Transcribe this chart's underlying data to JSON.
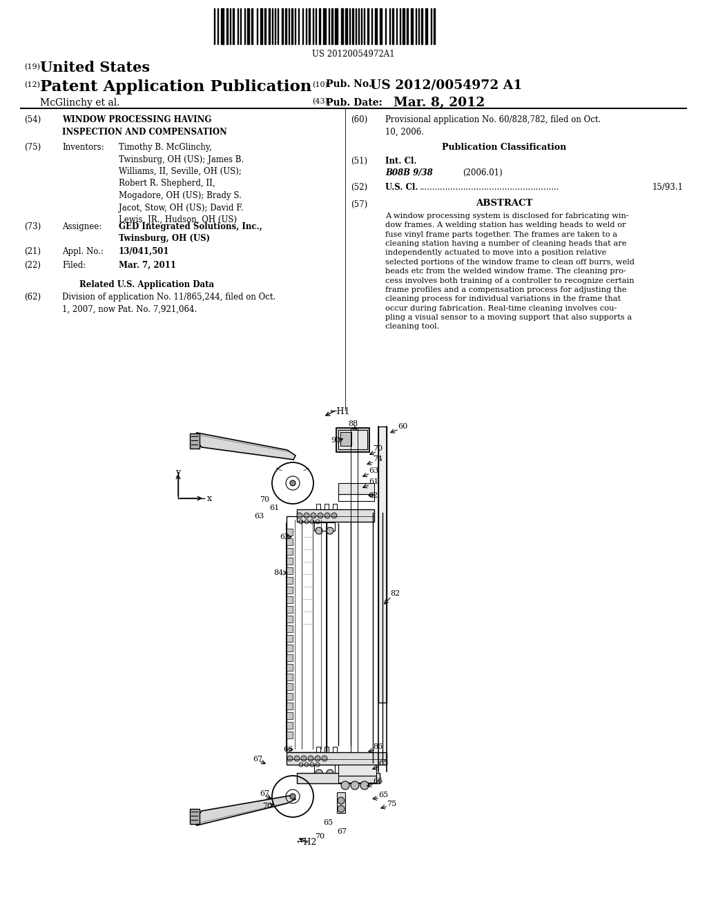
{
  "bg_color": "#ffffff",
  "barcode_text": "US 20120054972A1",
  "header_19": "(19)",
  "header_19_text": "United States",
  "header_12": "(12)",
  "header_12_text": "Patent Application Publication",
  "header_10": "(10)",
  "header_10_label": "Pub. No.:",
  "header_10_value": "US 2012/0054972 A1",
  "header_43": "(43)",
  "header_43_label": "Pub. Date:",
  "header_43_value": "Mar. 8, 2012",
  "mcglinchy": "McGlinchy et al.",
  "field_54_label": "(54)",
  "field_54_title": "WINDOW PROCESSING HAVING\nINSPECTION AND COMPENSATION",
  "field_75_label": "(75)",
  "field_75_key": "Inventors:",
  "field_75_value": "Timothy B. McGlinchy,\nTwinsburg, OH (US); James B.\nWilliams, II, Seville, OH (US);\nRobert R. Shepherd, II,\nMogadore, OH (US); Brady S.\nJacot, Stow, OH (US); David F.\nLewis, JR., Hudson, OH (US)",
  "field_73_label": "(73)",
  "field_73_key": "Assignee:",
  "field_73_value": "GED Integrated Solutions, Inc.,\nTwinsburg, OH (US)",
  "field_21_label": "(21)",
  "field_21_key": "Appl. No.:",
  "field_21_value": "13/041,501",
  "field_22_label": "(22)",
  "field_22_key": "Filed:",
  "field_22_value": "Mar. 7, 2011",
  "related_title": "Related U.S. Application Data",
  "field_62_label": "(62)",
  "field_62_value": "Division of application No. 11/865,244, filed on Oct.\n1, 2007, now Pat. No. 7,921,064.",
  "field_60_label": "(60)",
  "field_60_value": "Provisional application No. 60/828,782, filed on Oct.\n10, 2006.",
  "pub_class_title": "Publication Classification",
  "field_51_label": "(51)",
  "field_51_key": "Int. Cl.",
  "field_51_class": "B08B 9/38",
  "field_51_year": "(2006.01)",
  "field_52_label": "(52)",
  "field_52_key": "U.S. Cl.",
  "field_52_dots": "......................................................",
  "field_52_value": "15/93.1",
  "field_57_label": "(57)",
  "field_57_key": "ABSTRACT",
  "abstract_text": "A window processing system is disclosed for fabricating win-\ndow frames. A welding station has welding heads to weld or\nfuse vinyl frame parts together. The frames are taken to a\ncleaning station having a number of cleaning heads that are\nindependently actuated to move into a position relative\nselected portions of the window frame to clean off burrs, weld\nbeads etc from the welded window frame. The cleaning pro-\ncess involves both training of a controller to recognize certain\nframe profiles and a compensation process for adjusting the\ncleaning process for individual variations in the frame that\noccur during fabrication. Real-time cleaning involves cou-\npling a visual sensor to a moving support that also supports a\ncleaning tool."
}
